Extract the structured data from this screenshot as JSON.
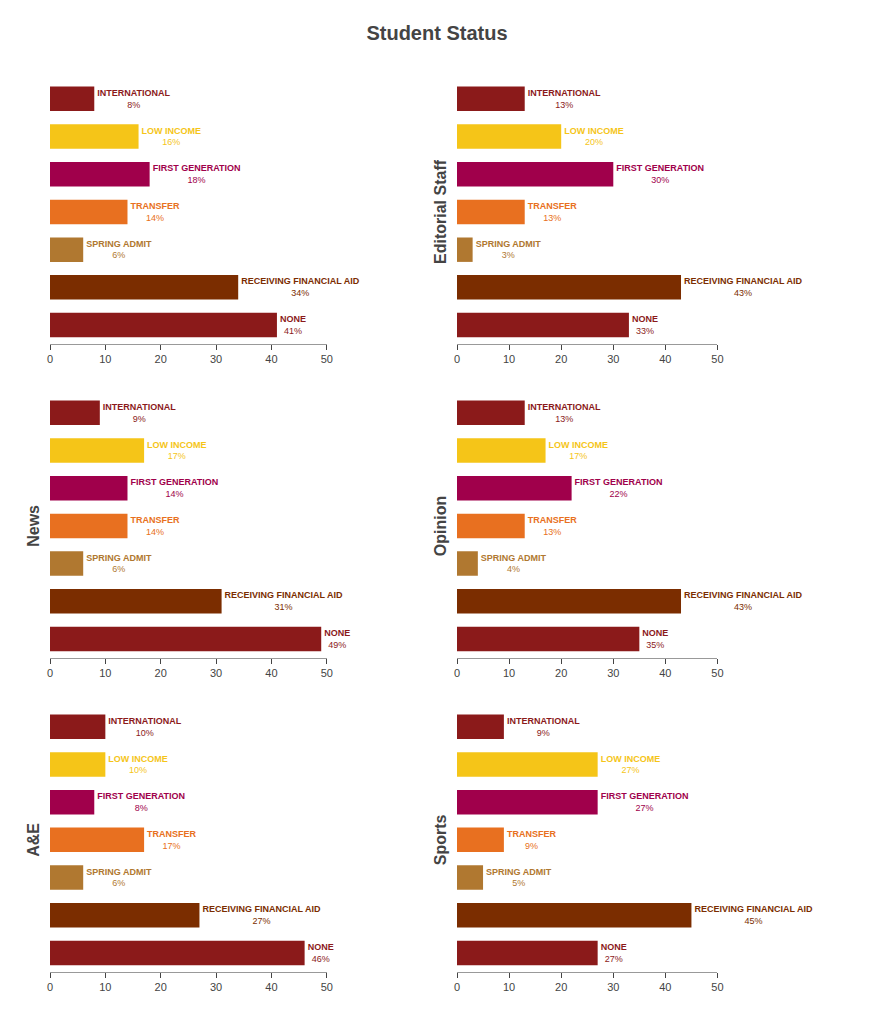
{
  "title": "Student Status",
  "chart_data": [
    {
      "type": "bar",
      "orientation": "horizontal",
      "categories": [
        "INTERNATIONAL",
        "LOW INCOME",
        "FIRST GENERATION",
        "TRANSFER",
        "SPRING ADMIT",
        "RECEIVING FINANCIAL AID",
        "NONE"
      ],
      "values": [
        8,
        16,
        18,
        14,
        6,
        34,
        41
      ],
      "value_labels": [
        "8%",
        "16%",
        "18%",
        "14%",
        "6%",
        "34%",
        "41%"
      ],
      "colors": [
        "#8B1A1A",
        "#F5C518",
        "#A0004B",
        "#E87020",
        "#B07830",
        "#7B2D00",
        "#8B1A1A"
      ],
      "xlim": [
        0,
        50
      ],
      "xticks": [
        0,
        10,
        20,
        30,
        40,
        50
      ],
      "grid": false,
      "data_labels": true,
      "tick_labels": "x"
    },
    {
      "type": "bar",
      "orientation": "horizontal",
      "y_label": "Editorial Staff",
      "categories": [
        "INTERNATIONAL",
        "LOW INCOME",
        "FIRST GENERATION",
        "TRANSFER",
        "SPRING ADMIT",
        "RECEIVING FINANCIAL AID",
        "NONE"
      ],
      "values": [
        13,
        20,
        30,
        13,
        3,
        43,
        33
      ],
      "value_labels": [
        "13%",
        "20%",
        "30%",
        "13%",
        "3%",
        "43%",
        "33%"
      ],
      "colors": [
        "#8B1A1A",
        "#F5C518",
        "#A0004B",
        "#E87020",
        "#B07830",
        "#7B2D00",
        "#8B1A1A"
      ],
      "xlim": [
        0,
        50
      ],
      "xticks": [
        0,
        10,
        20,
        30,
        40,
        50
      ],
      "grid": false,
      "data_labels": true,
      "tick_labels": "x"
    },
    {
      "type": "bar",
      "orientation": "horizontal",
      "y_label": "News",
      "categories": [
        "INTERNATIONAL",
        "LOW INCOME",
        "FIRST GENERATION",
        "TRANSFER",
        "SPRING ADMIT",
        "RECEIVING FINANCIAL AID",
        "NONE"
      ],
      "values": [
        9,
        17,
        14,
        14,
        6,
        31,
        49
      ],
      "value_labels": [
        "9%",
        "17%",
        "14%",
        "14%",
        "6%",
        "31%",
        "49%"
      ],
      "colors": [
        "#8B1A1A",
        "#F5C518",
        "#A0004B",
        "#E87020",
        "#B07830",
        "#7B2D00",
        "#8B1A1A"
      ],
      "xlim": [
        0,
        50
      ],
      "xticks": [
        0,
        10,
        20,
        30,
        40,
        50
      ],
      "grid": false,
      "data_labels": true,
      "tick_labels": "x"
    },
    {
      "type": "bar",
      "orientation": "horizontal",
      "y_label": "Opinion",
      "categories": [
        "INTERNATIONAL",
        "LOW INCOME",
        "FIRST GENERATION",
        "TRANSFER",
        "SPRING ADMIT",
        "RECEIVING FINANCIAL AID",
        "NONE"
      ],
      "values": [
        13,
        17,
        22,
        13,
        4,
        43,
        35
      ],
      "value_labels": [
        "13%",
        "17%",
        "22%",
        "13%",
        "4%",
        "43%",
        "35%"
      ],
      "colors": [
        "#8B1A1A",
        "#F5C518",
        "#A0004B",
        "#E87020",
        "#B07830",
        "#7B2D00",
        "#8B1A1A"
      ],
      "xlim": [
        0,
        50
      ],
      "xticks": [
        0,
        10,
        20,
        30,
        40,
        50
      ],
      "grid": false,
      "data_labels": true,
      "tick_labels": "x"
    },
    {
      "type": "bar",
      "orientation": "horizontal",
      "y_label": "A&E",
      "categories": [
        "INTERNATIONAL",
        "LOW INCOME",
        "FIRST GENERATION",
        "TRANSFER",
        "SPRING ADMIT",
        "RECEIVING FINANCIAL AID",
        "NONE"
      ],
      "values": [
        10,
        10,
        8,
        17,
        6,
        27,
        46
      ],
      "value_labels": [
        "10%",
        "10%",
        "8%",
        "17%",
        "6%",
        "27%",
        "46%"
      ],
      "colors": [
        "#8B1A1A",
        "#F5C518",
        "#A0004B",
        "#E87020",
        "#B07830",
        "#7B2D00",
        "#8B1A1A"
      ],
      "xlim": [
        0,
        50
      ],
      "xticks": [
        0,
        10,
        20,
        30,
        40,
        50
      ],
      "grid": false,
      "data_labels": true,
      "tick_labels": "x"
    },
    {
      "type": "bar",
      "orientation": "horizontal",
      "y_label": "Sports",
      "categories": [
        "INTERNATIONAL",
        "LOW INCOME",
        "FIRST GENERATION",
        "TRANSFER",
        "SPRING ADMIT",
        "RECEIVING FINANCIAL AID",
        "NONE"
      ],
      "values": [
        9,
        27,
        27,
        9,
        5,
        45,
        27
      ],
      "value_labels": [
        "9%",
        "27%",
        "27%",
        "9%",
        "5%",
        "45%",
        "27%"
      ],
      "colors": [
        "#8B1A1A",
        "#F5C518",
        "#A0004B",
        "#E87020",
        "#B07830",
        "#7B2D00",
        "#8B1A1A"
      ],
      "xlim": [
        0,
        50
      ],
      "xticks": [
        0,
        10,
        20,
        30,
        40,
        50
      ],
      "grid": false,
      "data_labels": true,
      "tick_labels": "x"
    }
  ]
}
